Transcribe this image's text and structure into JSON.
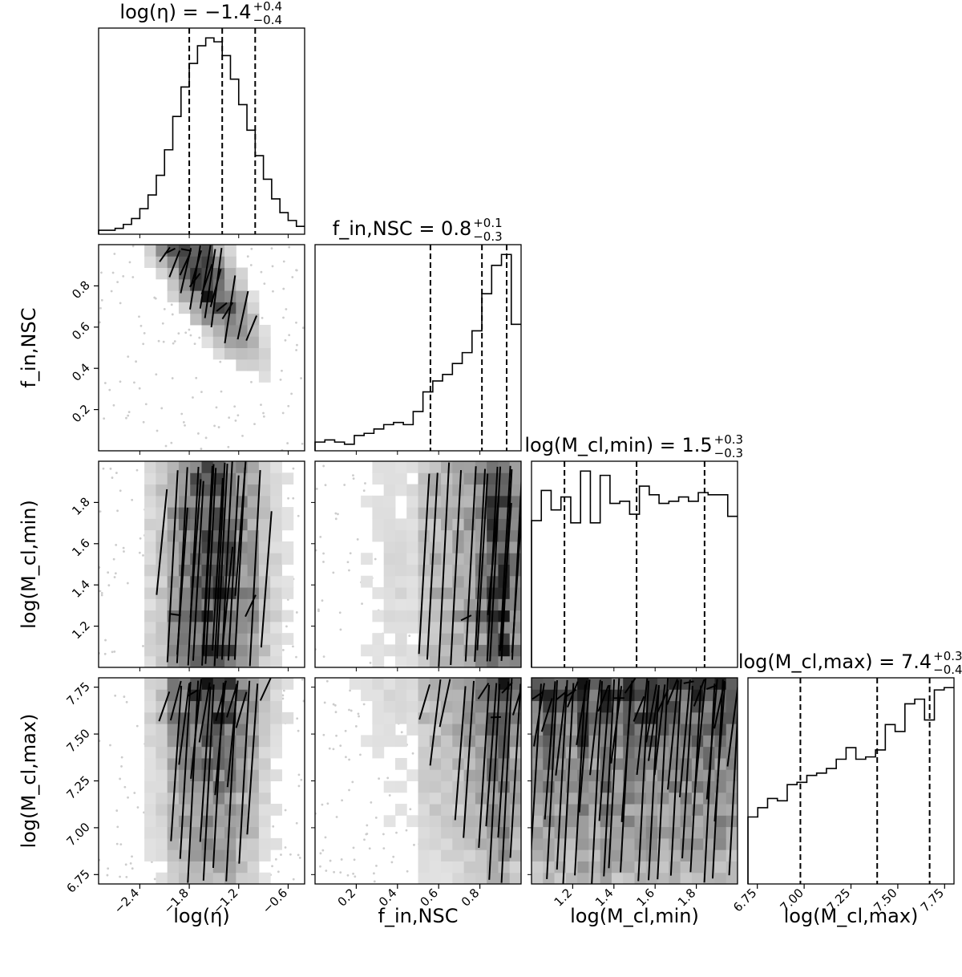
{
  "chart_data": {
    "type": "corner",
    "parameters": [
      {
        "key": "log_eta",
        "label": "log(η)",
        "range": [
          -2.9,
          -0.4
        ],
        "ticks": [
          -2.4,
          -1.8,
          -1.2,
          -0.6
        ],
        "tick_labels": [
          "−2.4",
          "−1.8",
          "−1.2",
          "−0.6"
        ],
        "title": {
          "lhs": "log(η) = −1.4",
          "sup": "+0.4",
          "sub": "−0.4"
        },
        "quantiles": [
          -1.8,
          -1.4,
          -1.0
        ],
        "histogram": [
          0.02,
          0.02,
          0.03,
          0.05,
          0.08,
          0.13,
          0.2,
          0.3,
          0.43,
          0.6,
          0.75,
          0.87,
          0.96,
          1.0,
          0.98,
          0.91,
          0.79,
          0.66,
          0.53,
          0.4,
          0.28,
          0.18,
          0.11,
          0.07,
          0.04
        ]
      },
      {
        "key": "f_in_nsc",
        "label": "f_in,NSC",
        "range": [
          0.0,
          1.0
        ],
        "ticks": [
          0.2,
          0.4,
          0.6,
          0.8
        ],
        "tick_labels": [
          "0.2",
          "0.4",
          "0.6",
          "0.8"
        ],
        "title": {
          "lhs": "f_in,NSC = 0.8",
          "sup": "+0.1",
          "sub": "−0.3"
        },
        "quantiles": [
          0.56,
          0.81,
          0.93
        ],
        "histogram": [
          0.04,
          0.05,
          0.04,
          0.03,
          0.07,
          0.08,
          0.1,
          0.12,
          0.13,
          0.12,
          0.18,
          0.27,
          0.32,
          0.35,
          0.4,
          0.45,
          0.55,
          0.72,
          0.85,
          0.9,
          0.58
        ]
      },
      {
        "key": "log_mcl_min",
        "label": "log(M_cl,min)",
        "range": [
          1.0,
          2.0
        ],
        "ticks": [
          1.2,
          1.4,
          1.6,
          1.8
        ],
        "tick_labels": [
          "1.2",
          "1.4",
          "1.6",
          "1.8"
        ],
        "title": {
          "lhs": "log(M_cl,min) = 1.5",
          "sup": "+0.3",
          "sub": "−0.3"
        },
        "quantiles": [
          1.16,
          1.51,
          1.84
        ],
        "histogram": [
          0.68,
          0.82,
          0.73,
          0.79,
          0.67,
          0.91,
          0.67,
          0.89,
          0.76,
          0.77,
          0.71,
          0.84,
          0.8,
          0.76,
          0.77,
          0.79,
          0.77,
          0.81,
          0.8,
          0.8,
          0.7
        ]
      },
      {
        "key": "log_mcl_max",
        "label": "log(M_cl,max)",
        "range": [
          6.7,
          7.8
        ],
        "ticks": [
          6.75,
          7.0,
          7.25,
          7.5,
          7.75
        ],
        "tick_labels": [
          "6.75",
          "7.00",
          "7.25",
          "7.50",
          "7.75"
        ],
        "title": {
          "lhs": "log(M_cl,max) = 7.4",
          "sup": "+0.3",
          "sub": "−0.4"
        },
        "quantiles": [
          6.98,
          7.39,
          7.67
        ],
        "histogram": [
          0.29,
          0.33,
          0.37,
          0.36,
          0.43,
          0.44,
          0.47,
          0.48,
          0.5,
          0.54,
          0.59,
          0.54,
          0.55,
          0.58,
          0.69,
          0.66,
          0.78,
          0.8,
          0.71,
          0.84,
          0.85
        ]
      }
    ],
    "panel_layout": "lower-triangle 4x4 corner plot; 1D histograms on diagonal with dashed quantile lines, 2D density with contours off-diagonal"
  },
  "colors": {
    "axis": "#000000",
    "hist": "#000000",
    "density_dark": "#1a1a1a",
    "density_light": "#f2f2f2",
    "scatter": "#cccccc"
  }
}
